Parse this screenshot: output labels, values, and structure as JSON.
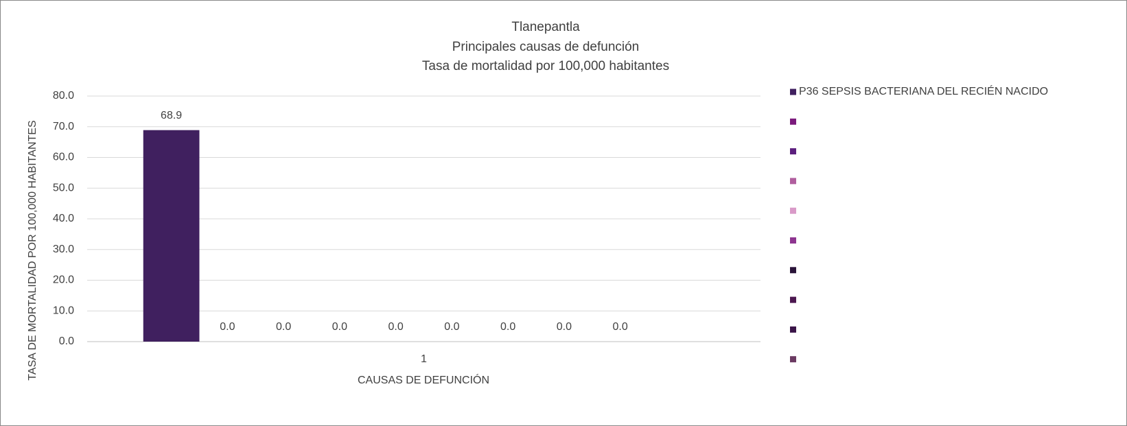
{
  "chart_data": {
    "type": "bar",
    "title": [
      "Tlanepantla",
      "Principales causas de defunción",
      "Tasa de mortalidad por 100,000 habitantes"
    ],
    "x_label": "CAUSAS DE DEFUNCIÓN",
    "y_label": "TASA DE MORTALIDAD POR 100,000 HABITANTES",
    "categories": [
      "1"
    ],
    "series": [
      {
        "name": "P36 SEPSIS BACTERIANA DEL RECIÉN NACIDO",
        "color": "#40205f",
        "values": [
          68.9
        ],
        "value_labels": [
          "68.9"
        ]
      },
      {
        "color": "#7b1a7c",
        "values": [
          0
        ],
        "value_labels": [
          "0.0"
        ]
      },
      {
        "color": "#5c1f7e",
        "values": [
          0
        ],
        "value_labels": [
          "0.0"
        ]
      },
      {
        "color": "#b05e9e",
        "values": [
          0
        ],
        "value_labels": [
          "0.0"
        ]
      },
      {
        "color": "#d99ac8",
        "values": [
          0
        ],
        "value_labels": [
          "0.0"
        ]
      },
      {
        "color": "#8e3590",
        "values": [
          0
        ],
        "value_labels": [
          "0.0"
        ]
      },
      {
        "color": "#2a1439",
        "values": [
          0
        ],
        "value_labels": [
          "0.0"
        ]
      },
      {
        "color": "#4c1750",
        "values": [
          0
        ],
        "value_labels": [
          "0.0"
        ]
      },
      {
        "color": "#3a1548",
        "values": [
          0
        ],
        "value_labels": [
          "0.0"
        ]
      },
      {
        "color": "#6b3a62",
        "values": [
          0
        ]
      }
    ],
    "ylim": [
      0,
      80
    ],
    "yticks": [
      {
        "value": 0,
        "label": "0.0"
      },
      {
        "value": 10,
        "label": "10.0"
      },
      {
        "value": 20,
        "label": "20.0"
      },
      {
        "value": 30,
        "label": "30.0"
      },
      {
        "value": 40,
        "label": "40.0"
      },
      {
        "value": 50,
        "label": "50.0"
      },
      {
        "value": 60,
        "label": "60.0"
      },
      {
        "value": 70,
        "label": "70.0"
      },
      {
        "value": 80,
        "label": "80.0"
      }
    ],
    "grid": true,
    "legend": "right"
  }
}
